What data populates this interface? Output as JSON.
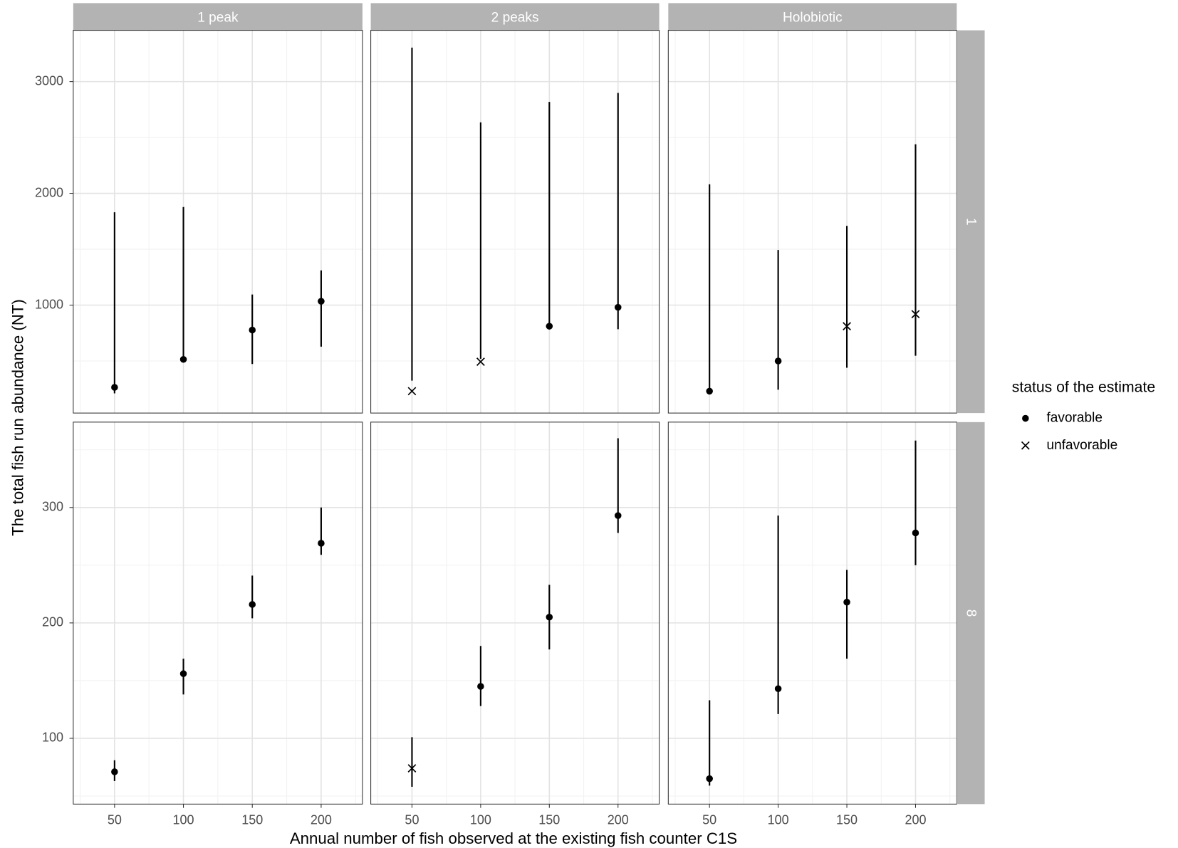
{
  "chart_data": {
    "type": "pointrange",
    "x_label": "Annual number of fish observed at the existing fish counter C1S",
    "y_label": "The total fish run abundance (NT)",
    "legend_title": "status of the estimate",
    "legend": [
      {
        "label": "favorable",
        "marker": "dot"
      },
      {
        "label": "unfavorable",
        "marker": "cross"
      }
    ],
    "color": "#000000",
    "grid": true,
    "columns": [
      "1 peak",
      "2 peaks",
      "Holobiotic"
    ],
    "x": [
      50,
      100,
      150,
      200
    ],
    "xlim": [
      20,
      230
    ],
    "xticks": [
      50,
      100,
      150,
      200
    ],
    "rows": [
      {
        "label": "1",
        "ylim": [
          34,
          3459
        ],
        "yticks": [
          1000,
          2000,
          3000
        ],
        "panels": [
          {
            "values": [
              264,
              514,
              777,
              1034
            ],
            "lower": [
              210,
              486,
              473,
              628
            ],
            "upper": [
              1831,
              1878,
              1095,
              1311
            ],
            "status": [
              "favorable",
              "favorable",
              "favorable",
              "favorable"
            ]
          },
          {
            "values": [
              230,
              493,
              811,
              980
            ],
            "lower": [
              324,
              520,
              811,
              784
            ],
            "upper": [
              3304,
              2635,
              2818,
              2899
            ],
            "status": [
              "unfavorable",
              "unfavorable",
              "favorable",
              "favorable"
            ]
          },
          {
            "values": [
              230,
              500,
              811,
              919
            ],
            "lower": [
              230,
              243,
              439,
              547
            ],
            "upper": [
              2081,
              1493,
              1709,
              2439
            ],
            "status": [
              "favorable",
              "favorable",
              "unfavorable",
              "unfavorable"
            ]
          }
        ]
      },
      {
        "label": "8",
        "ylim": [
          43,
          374
        ],
        "yticks": [
          100,
          200,
          300
        ],
        "panels": [
          {
            "values": [
              71,
              156,
              216,
              269
            ],
            "lower": [
              63,
              138,
              204,
              259
            ],
            "upper": [
              81,
              169,
              241,
              300
            ],
            "status": [
              "favorable",
              "favorable",
              "favorable",
              "favorable"
            ]
          },
          {
            "values": [
              74,
              145,
              205,
              293
            ],
            "lower": [
              58,
              128,
              177,
              278
            ],
            "upper": [
              101,
              180,
              233,
              360
            ],
            "status": [
              "unfavorable",
              "favorable",
              "favorable",
              "favorable"
            ]
          },
          {
            "values": [
              65,
              143,
              218,
              278
            ],
            "lower": [
              59,
              121,
              169,
              250
            ],
            "upper": [
              133,
              293,
              246,
              358
            ],
            "status": [
              "favorable",
              "favorable",
              "favorable",
              "favorable"
            ]
          }
        ]
      }
    ]
  }
}
